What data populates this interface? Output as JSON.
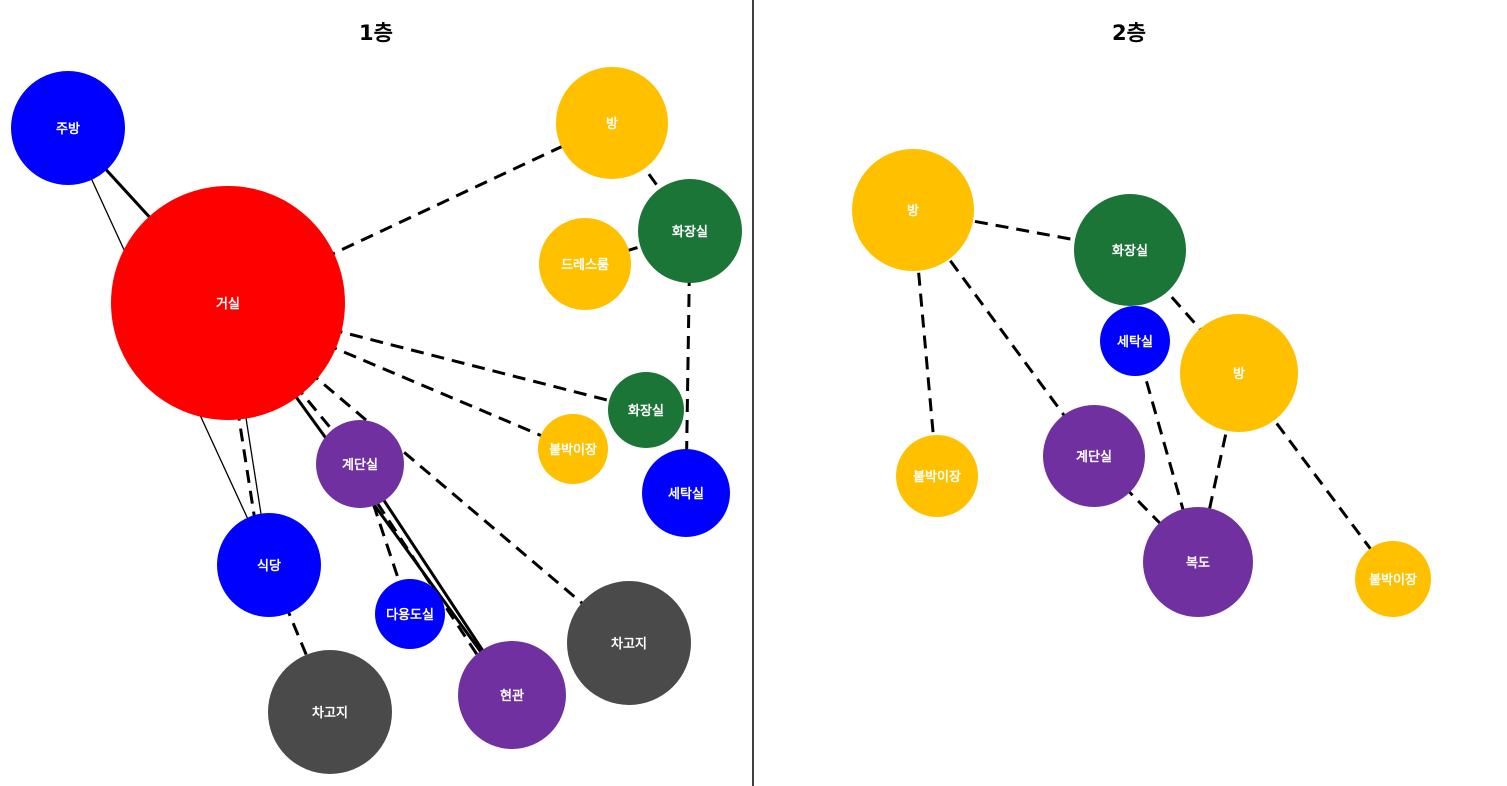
{
  "colors": {
    "living": "#ff0000",
    "room": "#ffc000",
    "bathroom": "#1a7537",
    "blue": "#0000ff",
    "stair": "#7030a0",
    "garage": "#4a4a4a",
    "divider": "#000000",
    "label": "#ffffff"
  },
  "floors": [
    {
      "id": "f1",
      "title": "1층",
      "nodes": [
        {
          "id": "kitchen",
          "label": "주방",
          "color": "blue"
        },
        {
          "id": "living",
          "label": "거실",
          "color": "living"
        },
        {
          "id": "room1",
          "label": "방",
          "color": "room"
        },
        {
          "id": "bath1",
          "label": "화장실",
          "color": "bathroom"
        },
        {
          "id": "dress",
          "label": "드레스룸",
          "color": "room"
        },
        {
          "id": "bath2",
          "label": "화장실",
          "color": "bathroom"
        },
        {
          "id": "closet",
          "label": "붙박이장",
          "color": "room"
        },
        {
          "id": "laundry",
          "label": "세탁실",
          "color": "blue"
        },
        {
          "id": "stair",
          "label": "계단실",
          "color": "stair"
        },
        {
          "id": "dining",
          "label": "식당",
          "color": "blue"
        },
        {
          "id": "multi",
          "label": "다용도실",
          "color": "blue"
        },
        {
          "id": "entrance",
          "label": "현관",
          "color": "stair"
        },
        {
          "id": "garage1",
          "label": "차고지",
          "color": "garage"
        },
        {
          "id": "garage2",
          "label": "차고지",
          "color": "garage"
        }
      ]
    },
    {
      "id": "f2",
      "title": "2층",
      "nodes": [
        {
          "id": "room2a",
          "label": "방",
          "color": "room"
        },
        {
          "id": "bath3",
          "label": "화장실",
          "color": "bathroom"
        },
        {
          "id": "laundry2",
          "label": "세탁실",
          "color": "blue"
        },
        {
          "id": "room2b",
          "label": "방",
          "color": "room"
        },
        {
          "id": "closet2a",
          "label": "붙박이장",
          "color": "room"
        },
        {
          "id": "stair2",
          "label": "계단실",
          "color": "stair"
        },
        {
          "id": "hall",
          "label": "복도",
          "color": "stair"
        },
        {
          "id": "closet2b",
          "label": "붙박이장",
          "color": "room"
        }
      ]
    }
  ],
  "edges": [
    {
      "from": "kitchen",
      "to": "living",
      "style": "solid-thick"
    },
    {
      "from": "kitchen",
      "to": "dining",
      "style": "solid-thin"
    },
    {
      "from": "living",
      "to": "dining",
      "style": "solid-thin"
    },
    {
      "from": "living",
      "to": "entrance",
      "style": "solid-thick"
    },
    {
      "from": "stair",
      "to": "entrance",
      "style": "solid-thick"
    },
    {
      "from": "living",
      "to": "room1",
      "style": "dashed"
    },
    {
      "from": "living",
      "to": "bath2",
      "style": "dashed"
    },
    {
      "from": "living",
      "to": "closet",
      "style": "dashed"
    },
    {
      "from": "living",
      "to": "stair",
      "style": "dashed"
    },
    {
      "from": "living",
      "to": "garage2",
      "style": "dashed"
    },
    {
      "from": "living",
      "to": "dining",
      "style": "dashed"
    },
    {
      "from": "room1",
      "to": "bath1",
      "style": "dashed"
    },
    {
      "from": "dress",
      "to": "bath1",
      "style": "dashed"
    },
    {
      "from": "bath1",
      "to": "laundry",
      "style": "dashed"
    },
    {
      "from": "stair",
      "to": "multi",
      "style": "dashed"
    },
    {
      "from": "stair",
      "to": "entrance",
      "style": "dashed"
    },
    {
      "from": "dining",
      "to": "garage1",
      "style": "dashed"
    },
    {
      "from": "room2a",
      "to": "bath3",
      "style": "dashed"
    },
    {
      "from": "room2a",
      "to": "closet2a",
      "style": "dashed"
    },
    {
      "from": "room2a",
      "to": "stair2",
      "style": "dashed"
    },
    {
      "from": "bath3",
      "to": "room2b",
      "style": "dashed"
    },
    {
      "from": "laundry2",
      "to": "hall",
      "style": "dashed"
    },
    {
      "from": "room2b",
      "to": "hall",
      "style": "dashed"
    },
    {
      "from": "room2b",
      "to": "closet2b",
      "style": "dashed"
    },
    {
      "from": "stair2",
      "to": "hall",
      "style": "dashed"
    }
  ]
}
